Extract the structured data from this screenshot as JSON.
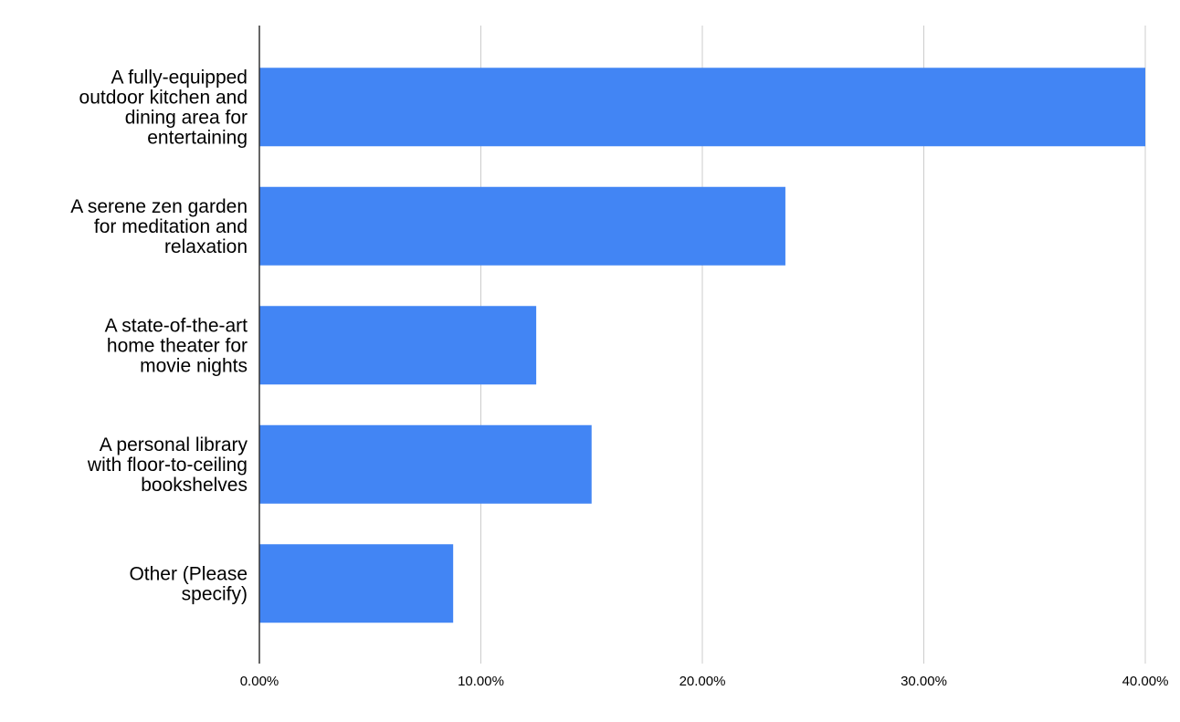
{
  "chart_data": {
    "type": "bar",
    "orientation": "horizontal",
    "title": "",
    "xlabel": "",
    "ylabel": "",
    "categories": [
      "A fully-equipped outdoor kitchen and dining area for entertaining",
      "A serene zen garden for meditation and relaxation",
      "A state-of-the-art home theater for movie nights",
      "A personal library with floor-to-ceiling bookshelves",
      "Other (Please specify)"
    ],
    "category_lines": [
      [
        "A fully-equipped",
        "outdoor kitchen and",
        "dining area for",
        "entertaining"
      ],
      [
        "A serene zen garden",
        "for meditation and",
        "relaxation"
      ],
      [
        "A state-of-the-art",
        "home theater for",
        "movie nights"
      ],
      [
        "A personal library",
        "with floor-to-ceiling",
        "bookshelves"
      ],
      [
        "Other (Please",
        "specify)"
      ]
    ],
    "values": [
      0.4,
      0.2375,
      0.125,
      0.15,
      0.0875
    ],
    "xlim": [
      0,
      0.4
    ],
    "x_ticks": [
      0,
      0.1,
      0.2,
      0.3,
      0.4
    ],
    "x_tick_labels": [
      "0.00%",
      "10.00%",
      "20.00%",
      "30.00%",
      "40.00%"
    ],
    "grid": true,
    "legend": false,
    "bar_color": "#4285f4"
  }
}
